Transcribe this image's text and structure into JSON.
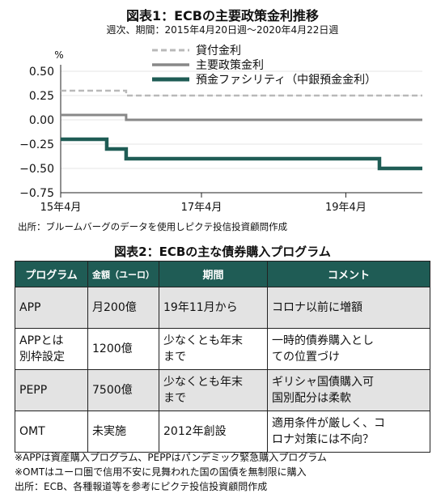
{
  "fig1": {
    "title": "図表1：ECBの主要政策金利推移",
    "subtitle": "週次、期間：2015年4月20日週～2020年4月22日週",
    "source": "出所：ブルームバーグのデータを使用しピクテ投信投資顧問作成"
  },
  "chart_data": {
    "type": "line",
    "title": "図表1：ECBの主要政策金利推移",
    "ylabel": "%",
    "ylim": [
      -0.75,
      0.5
    ],
    "yticks": [
      "0.50",
      "0.25",
      "0.00",
      "−0.25",
      "−0.50",
      "−0.75"
    ],
    "ytick_values": [
      0.5,
      0.25,
      0.0,
      -0.25,
      -0.5,
      -0.75
    ],
    "xlim": [
      "2015-04-20",
      "2020-04-22"
    ],
    "xticks": [
      "15年4月",
      "17年4月",
      "19年4月"
    ],
    "xtick_dates": [
      "2015-04-20",
      "2017-04-01",
      "2019-04-01"
    ],
    "legend_position": "top-right",
    "series": [
      {
        "name": "貸付金利",
        "color": "#b9b9b9",
        "style": "dashed",
        "x": [
          "2015-04-20",
          "2016-03-16",
          "2020-04-22"
        ],
        "y": [
          0.3,
          0.25,
          0.25
        ]
      },
      {
        "name": "主要政策金利",
        "color": "#888888",
        "style": "solid",
        "x": [
          "2015-04-20",
          "2016-03-16",
          "2020-04-22"
        ],
        "y": [
          0.05,
          0.0,
          0.0
        ]
      },
      {
        "name": "預金ファシリティ（中銀預金金利）",
        "color": "#1f5c55",
        "style": "solid",
        "x": [
          "2015-04-20",
          "2015-12-09",
          "2016-03-16",
          "2019-09-18",
          "2020-04-22"
        ],
        "y": [
          -0.2,
          -0.3,
          -0.4,
          -0.5,
          -0.5
        ]
      }
    ]
  },
  "fig2": {
    "title": "図表2：ECBの主な債券購入プログラム",
    "headers": [
      "プログラム",
      "金額（ユーロ）",
      "期間",
      "コメント"
    ],
    "rows": [
      {
        "program": "APP",
        "amount": "月200億",
        "period": "19年11月から",
        "comment": "コロナ以前に増額"
      },
      {
        "program": "APPとは\n別枠設定",
        "amount": "1200億",
        "period": "少なくとも年末\nまで",
        "comment": "一時的債券購入とし\nての位置づけ"
      },
      {
        "program": "PEPP",
        "amount": "7500億",
        "period": "少なくとも年末\nまで",
        "comment": "ギリシャ国債購入可\n国別配分は柔軟"
      },
      {
        "program": "OMT",
        "amount": "未実施",
        "period": "2012年創設",
        "comment": "適用条件が厳しく、コ\nロナ対策には不向？"
      }
    ],
    "notes": [
      "※APPは資産購入プログラム、PEPPはパンデミック緊急購入プログラム",
      "※OMTはユーロ圏で信用不安に見舞われた国の国債を無制限に購入",
      "出所：ECB、各種報道等を参考にピクテ投信投資顧問作成"
    ]
  }
}
